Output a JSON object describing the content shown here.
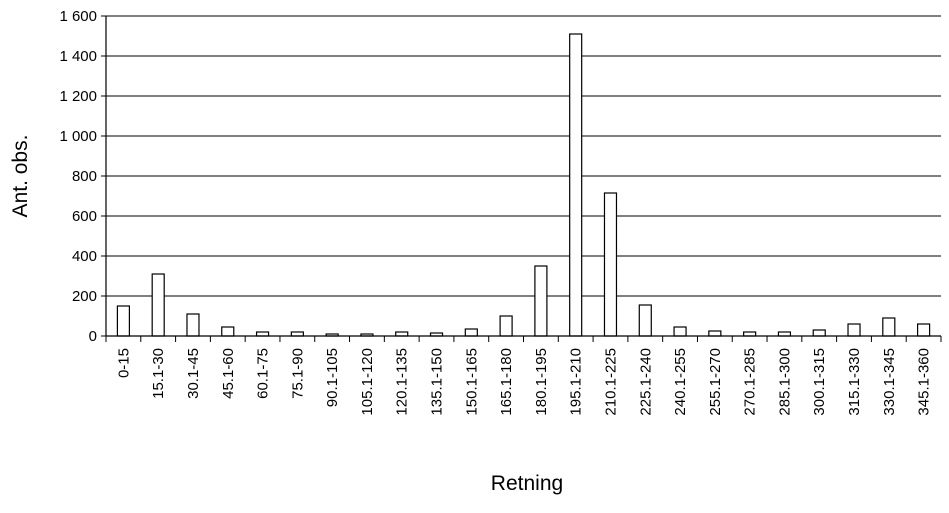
{
  "chart_data": {
    "type": "bar",
    "title": "",
    "xlabel": "Retning",
    "ylabel": "Ant. obs.",
    "ylim": [
      0,
      1600
    ],
    "yticks": [
      0,
      200,
      400,
      600,
      800,
      1000,
      1200,
      1400,
      1600
    ],
    "ytick_labels": [
      "0",
      "200",
      "400",
      "600",
      "800",
      "1 000",
      "1 200",
      "1 400",
      "1 600"
    ],
    "grid": "horizontal",
    "legend": "none",
    "categories": [
      "0-15",
      "15.1-30",
      "30.1-45",
      "45.1-60",
      "60.1-75",
      "75.1-90",
      "90.1-105",
      "105.1-120",
      "120.1-135",
      "135.1-150",
      "150.1-165",
      "165.1-180",
      "180.1-195",
      "195.1-210",
      "210.1-225",
      "225.1-240",
      "240.1-255",
      "255.1-270",
      "270.1-285",
      "285.1-300",
      "300.1-315",
      "315.1-330",
      "330.1-345",
      "345.1-360"
    ],
    "values": [
      150,
      310,
      110,
      45,
      20,
      20,
      10,
      10,
      20,
      15,
      35,
      100,
      350,
      1510,
      715,
      155,
      45,
      25,
      20,
      20,
      30,
      60,
      90,
      60
    ],
    "colors": {
      "bar_fill": "#ffffff",
      "bar_stroke": "#000000",
      "grid": "#000000"
    }
  }
}
